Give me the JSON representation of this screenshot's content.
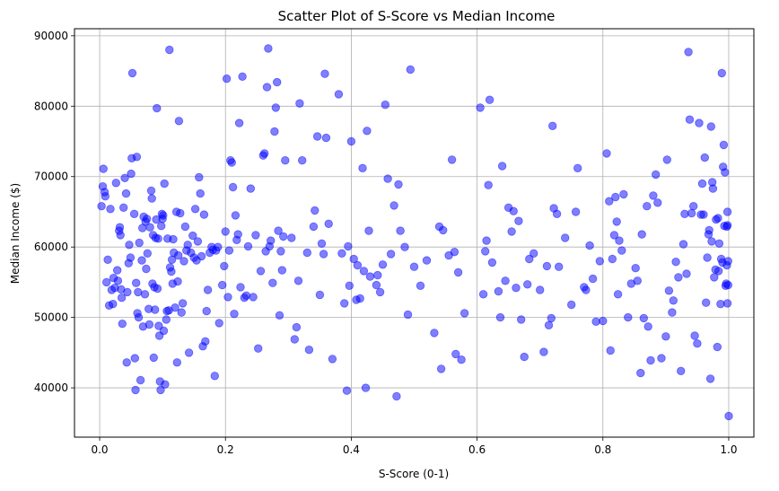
{
  "chart_data": {
    "type": "scatter",
    "title": "Scatter Plot of S-Score vs Median Income",
    "xlabel": "S-Score (0-1)",
    "ylabel": "Median Income ($)",
    "xlim": [
      -0.04,
      1.04
    ],
    "ylim": [
      33000,
      91000
    ],
    "x_ticks": [
      0.0,
      0.2,
      0.4,
      0.6,
      0.8,
      1.0
    ],
    "x_tick_labels": [
      "0.0",
      "0.2",
      "0.4",
      "0.6",
      "0.8",
      "1.0"
    ],
    "y_ticks": [
      40000,
      50000,
      60000,
      70000,
      80000,
      90000
    ],
    "y_tick_labels": [
      "40000",
      "50000",
      "60000",
      "70000",
      "80000",
      "90000"
    ],
    "grid": true,
    "legend": "none",
    "marker_color": "#0000ff",
    "marker_alpha": 0.5,
    "points": [
      [
        0.003,
        65800
      ],
      [
        0.005,
        68600
      ],
      [
        0.006,
        71100
      ],
      [
        0.008,
        67800
      ],
      [
        0.009,
        67200
      ],
      [
        0.011,
        55000
      ],
      [
        0.013,
        58200
      ],
      [
        0.015,
        51700
      ],
      [
        0.017,
        65400
      ],
      [
        0.019,
        53900
      ],
      [
        0.021,
        51900
      ],
      [
        0.022,
        55600
      ],
      [
        0.024,
        54200
      ],
      [
        0.026,
        69100
      ],
      [
        0.028,
        56700
      ],
      [
        0.029,
        55200
      ],
      [
        0.031,
        62300
      ],
      [
        0.032,
        62800
      ],
      [
        0.033,
        61700
      ],
      [
        0.034,
        54000
      ],
      [
        0.035,
        52800
      ],
      [
        0.036,
        49100
      ],
      [
        0.038,
        65600
      ],
      [
        0.04,
        69800
      ],
      [
        0.042,
        67600
      ],
      [
        0.043,
        43600
      ],
      [
        0.044,
        53600
      ],
      [
        0.046,
        57700
      ],
      [
        0.047,
        60300
      ],
      [
        0.049,
        58500
      ],
      [
        0.05,
        70400
      ],
      [
        0.051,
        72600
      ],
      [
        0.052,
        84700
      ],
      [
        0.055,
        64700
      ],
      [
        0.056,
        44200
      ],
      [
        0.057,
        39700
      ],
      [
        0.058,
        54900
      ],
      [
        0.059,
        72800
      ],
      [
        0.06,
        50600
      ],
      [
        0.061,
        53600
      ],
      [
        0.062,
        50000
      ],
      [
        0.063,
        60600
      ],
      [
        0.065,
        41100
      ],
      [
        0.067,
        58100
      ],
      [
        0.068,
        62700
      ],
      [
        0.069,
        48700
      ],
      [
        0.07,
        64300
      ],
      [
        0.072,
        53300
      ],
      [
        0.073,
        63600
      ],
      [
        0.074,
        56900
      ],
      [
        0.075,
        64000
      ],
      [
        0.076,
        59100
      ],
      [
        0.078,
        51200
      ],
      [
        0.079,
        49000
      ],
      [
        0.08,
        62800
      ],
      [
        0.082,
        68000
      ],
      [
        0.083,
        66900
      ],
      [
        0.084,
        54800
      ],
      [
        0.085,
        61700
      ],
      [
        0.086,
        44300
      ],
      [
        0.087,
        54300
      ],
      [
        0.088,
        51100
      ],
      [
        0.089,
        61300
      ],
      [
        0.09,
        63900
      ],
      [
        0.091,
        79700
      ],
      [
        0.092,
        54100
      ],
      [
        0.093,
        61200
      ],
      [
        0.094,
        48800
      ],
      [
        0.095,
        47400
      ],
      [
        0.096,
        40900
      ],
      [
        0.097,
        39700
      ],
      [
        0.098,
        63000
      ],
      [
        0.099,
        64700
      ],
      [
        0.1,
        64000
      ],
      [
        0.101,
        64500
      ],
      [
        0.102,
        48100
      ],
      [
        0.103,
        69000
      ],
      [
        0.104,
        40500
      ],
      [
        0.106,
        49700
      ],
      [
        0.107,
        50900
      ],
      [
        0.108,
        61200
      ],
      [
        0.11,
        51000
      ],
      [
        0.111,
        88000
      ],
      [
        0.112,
        57100
      ],
      [
        0.114,
        56500
      ],
      [
        0.115,
        58200
      ],
      [
        0.116,
        54800
      ],
      [
        0.117,
        61100
      ],
      [
        0.118,
        59200
      ],
      [
        0.12,
        51400
      ],
      [
        0.122,
        65000
      ],
      [
        0.123,
        43600
      ],
      [
        0.124,
        55100
      ],
      [
        0.125,
        58800
      ],
      [
        0.126,
        77900
      ],
      [
        0.128,
        64800
      ],
      [
        0.13,
        50700
      ],
      [
        0.132,
        52000
      ],
      [
        0.134,
        58000
      ],
      [
        0.136,
        62900
      ],
      [
        0.138,
        59500
      ],
      [
        0.14,
        60300
      ],
      [
        0.142,
        45000
      ],
      [
        0.145,
        59200
      ],
      [
        0.148,
        61600
      ],
      [
        0.15,
        58500
      ],
      [
        0.152,
        65400
      ],
      [
        0.154,
        58100
      ],
      [
        0.156,
        60800
      ],
      [
        0.158,
        69900
      ],
      [
        0.16,
        67600
      ],
      [
        0.162,
        58700
      ],
      [
        0.164,
        45900
      ],
      [
        0.166,
        64600
      ],
      [
        0.168,
        46600
      ],
      [
        0.17,
        50900
      ],
      [
        0.172,
        53900
      ],
      [
        0.175,
        59200
      ],
      [
        0.178,
        60000
      ],
      [
        0.18,
        59600
      ],
      [
        0.183,
        41700
      ],
      [
        0.185,
        59500
      ],
      [
        0.188,
        60000
      ],
      [
        0.19,
        49200
      ],
      [
        0.195,
        54600
      ],
      [
        0.198,
        57300
      ],
      [
        0.2,
        62200
      ],
      [
        0.202,
        83900
      ],
      [
        0.204,
        52900
      ],
      [
        0.206,
        59500
      ],
      [
        0.208,
        72300
      ],
      [
        0.21,
        72000
      ],
      [
        0.212,
        68500
      ],
      [
        0.214,
        50500
      ],
      [
        0.216,
        64500
      ],
      [
        0.218,
        61000
      ],
      [
        0.22,
        61800
      ],
      [
        0.222,
        77600
      ],
      [
        0.224,
        54300
      ],
      [
        0.227,
        84200
      ],
      [
        0.23,
        52800
      ],
      [
        0.233,
        53100
      ],
      [
        0.236,
        60100
      ],
      [
        0.24,
        68300
      ],
      [
        0.244,
        52900
      ],
      [
        0.248,
        61700
      ],
      [
        0.252,
        45600
      ],
      [
        0.256,
        56600
      ],
      [
        0.26,
        73000
      ],
      [
        0.262,
        73300
      ],
      [
        0.264,
        59400
      ],
      [
        0.266,
        82700
      ],
      [
        0.268,
        88200
      ],
      [
        0.27,
        60100
      ],
      [
        0.272,
        60900
      ],
      [
        0.275,
        54900
      ],
      [
        0.278,
        76400
      ],
      [
        0.28,
        79800
      ],
      [
        0.282,
        83400
      ],
      [
        0.284,
        62300
      ],
      [
        0.286,
        50300
      ],
      [
        0.288,
        59400
      ],
      [
        0.29,
        56700
      ],
      [
        0.292,
        61500
      ],
      [
        0.295,
        72300
      ],
      [
        0.305,
        61300
      ],
      [
        0.31,
        46900
      ],
      [
        0.313,
        48600
      ],
      [
        0.316,
        55200
      ],
      [
        0.318,
        80400
      ],
      [
        0.322,
        72300
      ],
      [
        0.33,
        59200
      ],
      [
        0.333,
        45400
      ],
      [
        0.34,
        62900
      ],
      [
        0.342,
        65200
      ],
      [
        0.346,
        75700
      ],
      [
        0.35,
        53200
      ],
      [
        0.353,
        60500
      ],
      [
        0.356,
        59000
      ],
      [
        0.358,
        84600
      ],
      [
        0.36,
        75500
      ],
      [
        0.364,
        63300
      ],
      [
        0.37,
        44100
      ],
      [
        0.38,
        81700
      ],
      [
        0.385,
        59100
      ],
      [
        0.389,
        52000
      ],
      [
        0.393,
        39600
      ],
      [
        0.395,
        60100
      ],
      [
        0.397,
        54500
      ],
      [
        0.4,
        75000
      ],
      [
        0.404,
        58300
      ],
      [
        0.408,
        52500
      ],
      [
        0.41,
        57400
      ],
      [
        0.414,
        52700
      ],
      [
        0.418,
        71200
      ],
      [
        0.42,
        56600
      ],
      [
        0.423,
        40000
      ],
      [
        0.425,
        76500
      ],
      [
        0.428,
        62300
      ],
      [
        0.43,
        55800
      ],
      [
        0.44,
        54600
      ],
      [
        0.442,
        56000
      ],
      [
        0.446,
        53600
      ],
      [
        0.45,
        57500
      ],
      [
        0.454,
        80200
      ],
      [
        0.458,
        69700
      ],
      [
        0.463,
        59000
      ],
      [
        0.468,
        65900
      ],
      [
        0.472,
        38800
      ],
      [
        0.475,
        68900
      ],
      [
        0.478,
        62300
      ],
      [
        0.485,
        60000
      ],
      [
        0.49,
        50400
      ],
      [
        0.494,
        85200
      ],
      [
        0.5,
        57200
      ],
      [
        0.51,
        54500
      ],
      [
        0.52,
        58100
      ],
      [
        0.532,
        47800
      ],
      [
        0.54,
        62900
      ],
      [
        0.543,
        42700
      ],
      [
        0.546,
        62400
      ],
      [
        0.555,
        58800
      ],
      [
        0.56,
        72400
      ],
      [
        0.564,
        59300
      ],
      [
        0.566,
        44800
      ],
      [
        0.57,
        56400
      ],
      [
        0.575,
        44000
      ],
      [
        0.58,
        50600
      ],
      [
        0.605,
        79800
      ],
      [
        0.61,
        53300
      ],
      [
        0.613,
        59400
      ],
      [
        0.615,
        60900
      ],
      [
        0.618,
        68800
      ],
      [
        0.62,
        80900
      ],
      [
        0.624,
        57800
      ],
      [
        0.634,
        53700
      ],
      [
        0.637,
        50000
      ],
      [
        0.64,
        71500
      ],
      [
        0.645,
        55200
      ],
      [
        0.65,
        65600
      ],
      [
        0.655,
        62200
      ],
      [
        0.658,
        65100
      ],
      [
        0.662,
        54200
      ],
      [
        0.666,
        63700
      ],
      [
        0.67,
        49700
      ],
      [
        0.675,
        44400
      ],
      [
        0.68,
        54700
      ],
      [
        0.683,
        58300
      ],
      [
        0.69,
        59100
      ],
      [
        0.7,
        53900
      ],
      [
        0.706,
        45100
      ],
      [
        0.711,
        57300
      ],
      [
        0.714,
        48900
      ],
      [
        0.718,
        49900
      ],
      [
        0.72,
        77200
      ],
      [
        0.722,
        65500
      ],
      [
        0.727,
        64700
      ],
      [
        0.73,
        57200
      ],
      [
        0.74,
        61300
      ],
      [
        0.75,
        51800
      ],
      [
        0.757,
        65000
      ],
      [
        0.76,
        71200
      ],
      [
        0.77,
        54300
      ],
      [
        0.773,
        53900
      ],
      [
        0.779,
        60200
      ],
      [
        0.784,
        55500
      ],
      [
        0.789,
        49400
      ],
      [
        0.795,
        58000
      ],
      [
        0.8,
        49500
      ],
      [
        0.806,
        73300
      ],
      [
        0.81,
        66500
      ],
      [
        0.812,
        45300
      ],
      [
        0.815,
        58300
      ],
      [
        0.818,
        61700
      ],
      [
        0.82,
        67100
      ],
      [
        0.822,
        63600
      ],
      [
        0.824,
        53300
      ],
      [
        0.826,
        60900
      ],
      [
        0.83,
        59500
      ],
      [
        0.833,
        67500
      ],
      [
        0.84,
        50000
      ],
      [
        0.845,
        54800
      ],
      [
        0.852,
        57000
      ],
      [
        0.855,
        55200
      ],
      [
        0.86,
        42100
      ],
      [
        0.862,
        61800
      ],
      [
        0.865,
        49900
      ],
      [
        0.87,
        65800
      ],
      [
        0.872,
        48700
      ],
      [
        0.876,
        43900
      ],
      [
        0.88,
        67300
      ],
      [
        0.884,
        70300
      ],
      [
        0.887,
        66300
      ],
      [
        0.893,
        44200
      ],
      [
        0.9,
        47300
      ],
      [
        0.902,
        72400
      ],
      [
        0.905,
        53800
      ],
      [
        0.91,
        50700
      ],
      [
        0.912,
        52400
      ],
      [
        0.916,
        57900
      ],
      [
        0.92,
        55700
      ],
      [
        0.924,
        42400
      ],
      [
        0.928,
        60400
      ],
      [
        0.93,
        64700
      ],
      [
        0.933,
        56200
      ],
      [
        0.936,
        87700
      ],
      [
        0.938,
        78100
      ],
      [
        0.941,
        64800
      ],
      [
        0.944,
        65800
      ],
      [
        0.946,
        47400
      ],
      [
        0.95,
        46300
      ],
      [
        0.953,
        77600
      ],
      [
        0.956,
        64600
      ],
      [
        0.958,
        69000
      ],
      [
        0.96,
        64600
      ],
      [
        0.962,
        72700
      ],
      [
        0.964,
        52100
      ],
      [
        0.966,
        58500
      ],
      [
        0.968,
        61800
      ],
      [
        0.969,
        62400
      ],
      [
        0.971,
        41300
      ],
      [
        0.972,
        77100
      ],
      [
        0.973,
        60800
      ],
      [
        0.974,
        69200
      ],
      [
        0.975,
        68300
      ],
      [
        0.977,
        55700
      ],
      [
        0.979,
        56800
      ],
      [
        0.98,
        63900
      ],
      [
        0.982,
        45800
      ],
      [
        0.983,
        64100
      ],
      [
        0.984,
        56600
      ],
      [
        0.985,
        60500
      ],
      [
        0.987,
        51900
      ],
      [
        0.988,
        58300
      ],
      [
        0.989,
        84700
      ],
      [
        0.99,
        57800
      ],
      [
        0.991,
        71400
      ],
      [
        0.992,
        74500
      ],
      [
        0.993,
        63000
      ],
      [
        0.994,
        70600
      ],
      [
        0.995,
        54500
      ],
      [
        0.996,
        54800
      ],
      [
        0.997,
        57400
      ],
      [
        0.998,
        63100
      ],
      [
        0.999,
        58000
      ],
      [
        1.0,
        36000
      ],
      [
        0.999,
        54600
      ],
      [
        0.998,
        52000
      ],
      [
        0.998,
        65000
      ],
      [
        0.997,
        62900
      ]
    ]
  }
}
